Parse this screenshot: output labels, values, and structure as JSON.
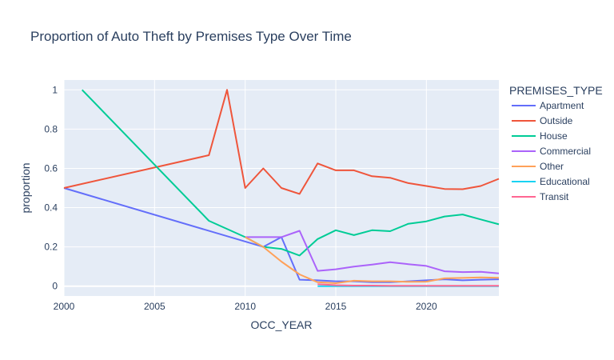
{
  "chart_data": {
    "type": "line",
    "title": "Proportion of Auto Theft by Premises Type Over Time",
    "xlabel": "OCC_YEAR",
    "ylabel": "proportion",
    "xlim": [
      2000,
      2024
    ],
    "ylim": [
      -0.05,
      1.05
    ],
    "x_ticks": [
      2000,
      2005,
      2010,
      2015,
      2020
    ],
    "y_ticks": [
      0,
      0.2,
      0.4,
      0.6,
      0.8,
      1
    ],
    "y_tick_labels": [
      "0",
      "0.2",
      "0.4",
      "0.6",
      "0.8",
      "1"
    ],
    "grid": true,
    "plot_background": "#e5ecf6",
    "legend": {
      "title": "PREMISES_TYPE",
      "position": "right"
    },
    "series": [
      {
        "name": "Apartment",
        "color": "#636efa",
        "points": [
          [
            2000,
            0.5
          ],
          [
            2011,
            0.2
          ],
          [
            2012,
            0.25
          ],
          [
            2013,
            0.033
          ],
          [
            2014,
            0.03
          ],
          [
            2015,
            0.025
          ],
          [
            2016,
            0.025
          ],
          [
            2017,
            0.02
          ],
          [
            2018,
            0.02
          ],
          [
            2019,
            0.025
          ],
          [
            2020,
            0.03
          ],
          [
            2021,
            0.035
          ],
          [
            2022,
            0.03
          ],
          [
            2023,
            0.033
          ],
          [
            2024,
            0.035
          ]
        ]
      },
      {
        "name": "Outside",
        "color": "#ef553b",
        "points": [
          [
            2000,
            0.5
          ],
          [
            2008,
            0.667
          ],
          [
            2009,
            1.0
          ],
          [
            2010,
            0.5
          ],
          [
            2011,
            0.6
          ],
          [
            2012,
            0.5
          ],
          [
            2013,
            0.47
          ],
          [
            2014,
            0.625
          ],
          [
            2015,
            0.59
          ],
          [
            2016,
            0.59
          ],
          [
            2017,
            0.56
          ],
          [
            2018,
            0.552
          ],
          [
            2019,
            0.525
          ],
          [
            2020,
            0.51
          ],
          [
            2021,
            0.495
          ],
          [
            2022,
            0.494
          ],
          [
            2023,
            0.51
          ],
          [
            2024,
            0.547
          ]
        ]
      },
      {
        "name": "House",
        "color": "#00cc96",
        "points": [
          [
            2001,
            1.0
          ],
          [
            2008,
            0.333
          ],
          [
            2010,
            0.25
          ],
          [
            2011,
            0.2
          ],
          [
            2012,
            0.19
          ],
          [
            2013,
            0.156
          ],
          [
            2014,
            0.24
          ],
          [
            2015,
            0.285
          ],
          [
            2016,
            0.26
          ],
          [
            2017,
            0.285
          ],
          [
            2018,
            0.28
          ],
          [
            2019,
            0.318
          ],
          [
            2020,
            0.33
          ],
          [
            2021,
            0.355
          ],
          [
            2022,
            0.365
          ],
          [
            2023,
            0.34
          ],
          [
            2024,
            0.315
          ]
        ]
      },
      {
        "name": "Commercial",
        "color": "#ab63fa",
        "points": [
          [
            2010,
            0.25
          ],
          [
            2011,
            0.25
          ],
          [
            2012,
            0.25
          ],
          [
            2013,
            0.282
          ],
          [
            2014,
            0.078
          ],
          [
            2015,
            0.086
          ],
          [
            2016,
            0.1
          ],
          [
            2017,
            0.11
          ],
          [
            2018,
            0.122
          ],
          [
            2019,
            0.112
          ],
          [
            2020,
            0.103
          ],
          [
            2021,
            0.076
          ],
          [
            2022,
            0.072
          ],
          [
            2023,
            0.073
          ],
          [
            2024,
            0.065
          ]
        ]
      },
      {
        "name": "Other",
        "color": "#ffa15a",
        "points": [
          [
            2010,
            0.25
          ],
          [
            2011,
            0.2
          ],
          [
            2012,
            0.125
          ],
          [
            2013,
            0.06
          ],
          [
            2014,
            0.02
          ],
          [
            2015,
            0.015
          ],
          [
            2016,
            0.028
          ],
          [
            2017,
            0.025
          ],
          [
            2018,
            0.025
          ],
          [
            2019,
            0.022
          ],
          [
            2020,
            0.023
          ],
          [
            2021,
            0.04
          ],
          [
            2022,
            0.042
          ],
          [
            2023,
            0.045
          ],
          [
            2024,
            0.043
          ]
        ]
      },
      {
        "name": "Educational",
        "color": "#19d3f3",
        "points": [
          [
            2014,
            0.0
          ],
          [
            2015,
            0.0
          ],
          [
            2016,
            0.0
          ],
          [
            2017,
            0.0
          ],
          [
            2018,
            0.0
          ],
          [
            2019,
            0.0
          ],
          [
            2020,
            0.0
          ],
          [
            2021,
            0.0
          ],
          [
            2022,
            0.0
          ],
          [
            2023,
            0.0
          ],
          [
            2024,
            0.0
          ]
        ]
      },
      {
        "name": "Transit",
        "color": "#ff6692",
        "points": [
          [
            2014,
            0.01
          ],
          [
            2015,
            0.005
          ],
          [
            2016,
            0.003
          ],
          [
            2017,
            0.003
          ],
          [
            2018,
            0.002
          ],
          [
            2019,
            0.002
          ],
          [
            2020,
            0.002
          ],
          [
            2021,
            0.002
          ],
          [
            2022,
            0.002
          ],
          [
            2023,
            0.002
          ],
          [
            2024,
            0.002
          ]
        ]
      }
    ]
  }
}
